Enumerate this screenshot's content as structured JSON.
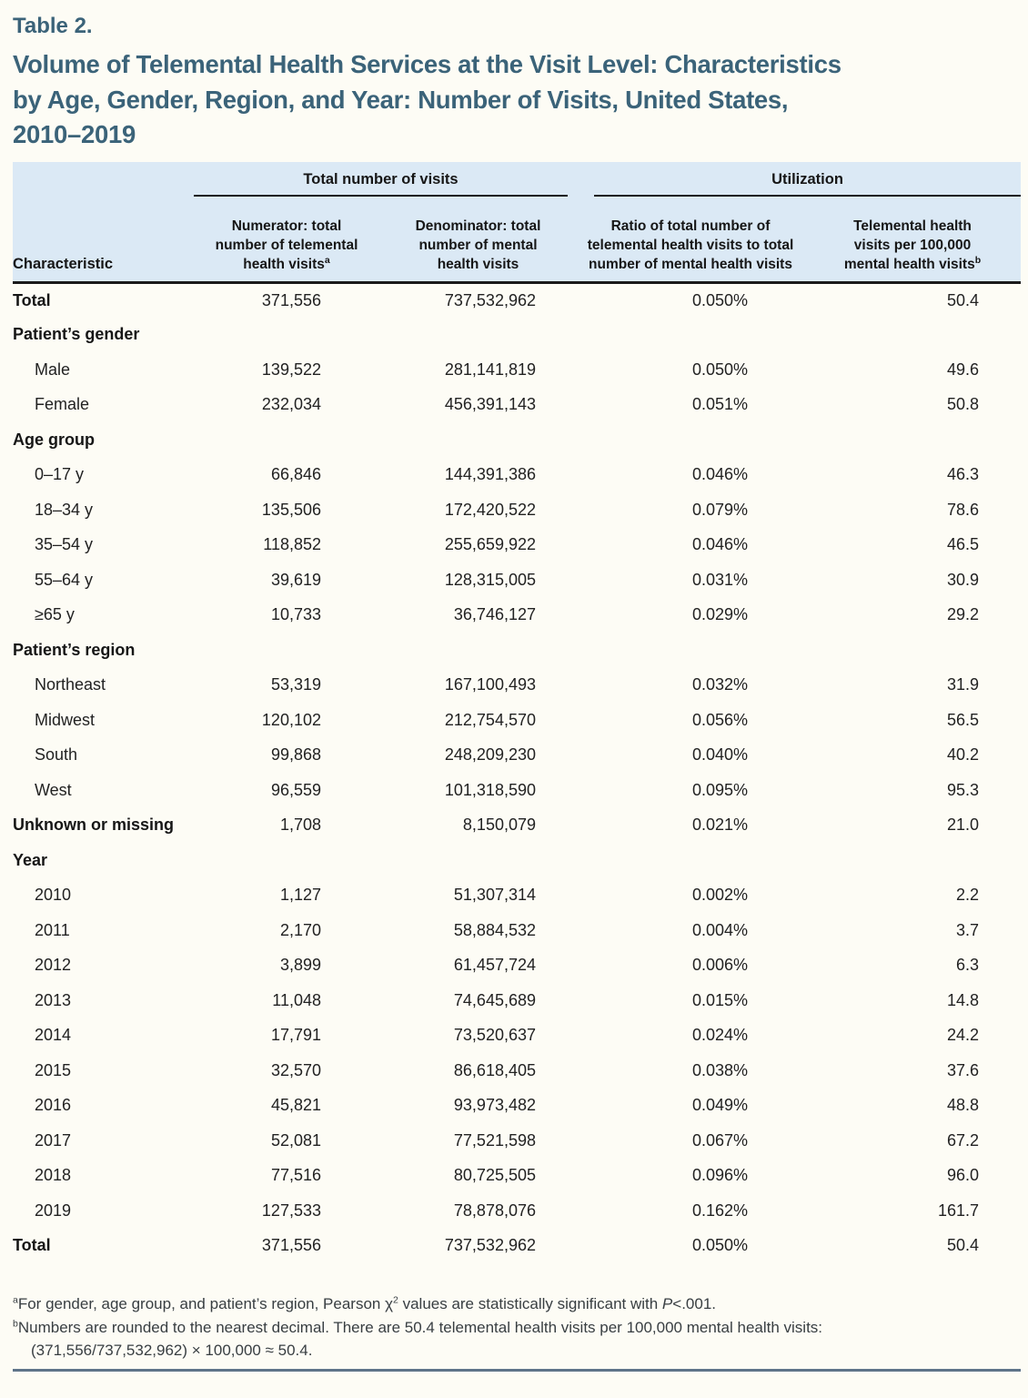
{
  "page": {
    "background": "#fdfcf5",
    "title_color": "#3b6379",
    "header_background": "#dbe9f5",
    "bottom_rule_color": "#5f7489"
  },
  "table_label": "Table 2.",
  "title": "Volume of Telemental Health Services at the Visit Level: Characteristics\nby Age, Gender, Region, and Year: Number of Visits, United States,\n2010–2019",
  "table": {
    "group_headers": [
      {
        "label": "Total number of visits"
      },
      {
        "label": "Utilization"
      }
    ],
    "columns": [
      {
        "label": "Characteristic",
        "sup": ""
      },
      {
        "label": "Numerator: total\nnumber of telemental\nhealth visits",
        "sup": "a"
      },
      {
        "label": "Denominator: total\nnumber of mental\nhealth visits",
        "sup": ""
      },
      {
        "label": "Ratio of total number of\ntelemental health visits to total\nnumber of mental health visits",
        "sup": ""
      },
      {
        "label": "Telemental health\nvisits per 100,000\nmental health visits",
        "sup": "b"
      }
    ],
    "rows": [
      {
        "label": "Total",
        "bold": true,
        "indent": false,
        "values": [
          "371,556",
          "737,532,962",
          "0.050%",
          "50.4"
        ]
      },
      {
        "label": "Patient’s gender",
        "bold": true,
        "indent": false,
        "values": []
      },
      {
        "label": "Male",
        "bold": false,
        "indent": true,
        "values": [
          "139,522",
          "281,141,819",
          "0.050%",
          "49.6"
        ]
      },
      {
        "label": "Female",
        "bold": false,
        "indent": true,
        "values": [
          "232,034",
          "456,391,143",
          "0.051%",
          "50.8"
        ]
      },
      {
        "label": "Age group",
        "bold": true,
        "indent": false,
        "values": []
      },
      {
        "label": "0–17 y",
        "bold": false,
        "indent": true,
        "values": [
          "66,846",
          "144,391,386",
          "0.046%",
          "46.3"
        ]
      },
      {
        "label": "18–34 y",
        "bold": false,
        "indent": true,
        "values": [
          "135,506",
          "172,420,522",
          "0.079%",
          "78.6"
        ]
      },
      {
        "label": "35–54 y",
        "bold": false,
        "indent": true,
        "values": [
          "118,852",
          "255,659,922",
          "0.046%",
          "46.5"
        ]
      },
      {
        "label": "55–64 y",
        "bold": false,
        "indent": true,
        "values": [
          "39,619",
          "128,315,005",
          "0.031%",
          "30.9"
        ]
      },
      {
        "label": "≥65 y",
        "bold": false,
        "indent": true,
        "values": [
          "10,733",
          "36,746,127",
          "0.029%",
          "29.2"
        ]
      },
      {
        "label": "Patient’s region",
        "bold": true,
        "indent": false,
        "values": []
      },
      {
        "label": "Northeast",
        "bold": false,
        "indent": true,
        "values": [
          "53,319",
          "167,100,493",
          "0.032%",
          "31.9"
        ]
      },
      {
        "label": "Midwest",
        "bold": false,
        "indent": true,
        "values": [
          "120,102",
          "212,754,570",
          "0.056%",
          "56.5"
        ]
      },
      {
        "label": "South",
        "bold": false,
        "indent": true,
        "values": [
          "99,868",
          "248,209,230",
          "0.040%",
          "40.2"
        ]
      },
      {
        "label": "West",
        "bold": false,
        "indent": true,
        "values": [
          "96,559",
          "101,318,590",
          "0.095%",
          "95.3"
        ]
      },
      {
        "label": "Unknown or missing",
        "bold": true,
        "indent": false,
        "values": [
          "1,708",
          "8,150,079",
          "0.021%",
          "21.0"
        ]
      },
      {
        "label": "Year",
        "bold": true,
        "indent": false,
        "values": []
      },
      {
        "label": "2010",
        "bold": false,
        "indent": true,
        "values": [
          "1,127",
          "51,307,314",
          "0.002%",
          "2.2"
        ]
      },
      {
        "label": "2011",
        "bold": false,
        "indent": true,
        "values": [
          "2,170",
          "58,884,532",
          "0.004%",
          "3.7"
        ]
      },
      {
        "label": "2012",
        "bold": false,
        "indent": true,
        "values": [
          "3,899",
          "61,457,724",
          "0.006%",
          "6.3"
        ]
      },
      {
        "label": "2013",
        "bold": false,
        "indent": true,
        "values": [
          "11,048",
          "74,645,689",
          "0.015%",
          "14.8"
        ]
      },
      {
        "label": "2014",
        "bold": false,
        "indent": true,
        "values": [
          "17,791",
          "73,520,637",
          "0.024%",
          "24.2"
        ]
      },
      {
        "label": "2015",
        "bold": false,
        "indent": true,
        "values": [
          "32,570",
          "86,618,405",
          "0.038%",
          "37.6"
        ]
      },
      {
        "label": "2016",
        "bold": false,
        "indent": true,
        "values": [
          "45,821",
          "93,973,482",
          "0.049%",
          "48.8"
        ]
      },
      {
        "label": "2017",
        "bold": false,
        "indent": true,
        "values": [
          "52,081",
          "77,521,598",
          "0.067%",
          "67.2"
        ]
      },
      {
        "label": "2018",
        "bold": false,
        "indent": true,
        "values": [
          "77,516",
          "80,725,505",
          "0.096%",
          "96.0"
        ]
      },
      {
        "label": "2019",
        "bold": false,
        "indent": true,
        "values": [
          "127,533",
          "78,878,076",
          "0.162%",
          "161.7"
        ]
      },
      {
        "label": "Total",
        "bold": true,
        "indent": false,
        "values": [
          "371,556",
          "737,532,962",
          "0.050%",
          "50.4"
        ]
      }
    ]
  },
  "footnotes": {
    "a": {
      "marker": "a",
      "text_before_sup": "For gender, age group, and patient’s region, Pearson χ",
      "chi_exponent": "2",
      "text_mid": " values are statistically significant with ",
      "italic_term": "P",
      "text_after": "<.001."
    },
    "b": {
      "marker": "b",
      "line1": "Numbers are rounded to the nearest decimal. There are 50.4 telemental health visits per 100,000 mental health visits:",
      "line2": "(371,556/737,532,962) × 100,000 ≈ 50.4."
    }
  }
}
